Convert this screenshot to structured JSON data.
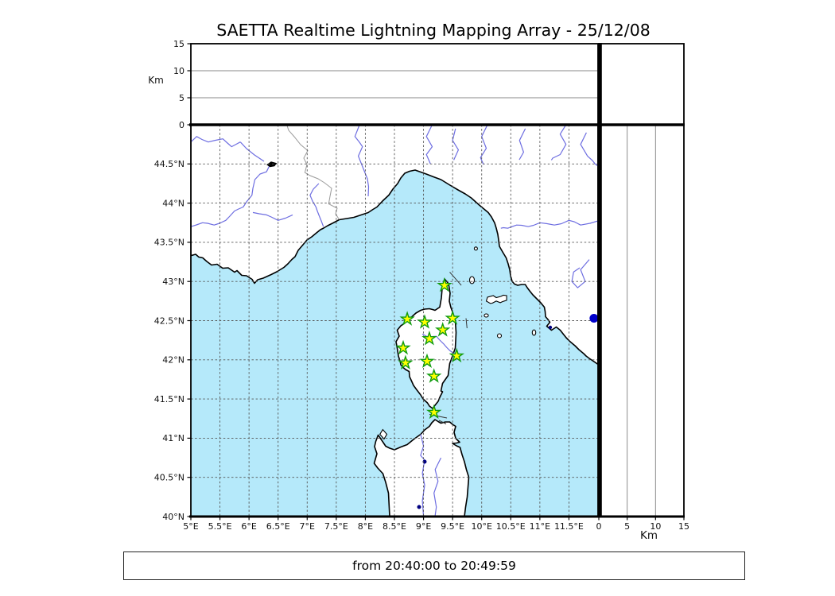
{
  "title": "SAETTA Realtime Lightning Mapping Array - 25/12/08",
  "time_bar": {
    "text": "from 20:40:00 to 20:49:59"
  },
  "colors": {
    "sea": "#b5e9fa",
    "land": "#ffffff",
    "coastline": "#000000",
    "river": "#6e6ee1",
    "country_border": "#9a9a9a",
    "map_grid": "#555555",
    "panel_grid": "#8a8a8a",
    "station_fill": "#ffff00",
    "station_stroke": "#0f9b0f",
    "source_dot": "#0000cc",
    "lake": "#000080"
  },
  "map_panel": {
    "lon_range": [
      5,
      12
    ],
    "lat_range": [
      40,
      45
    ],
    "grid_interval_deg": 0.5,
    "lon_ticks": [
      {
        "value": 5,
        "label": "5°E"
      },
      {
        "value": 5.5,
        "label": "5.5°E"
      },
      {
        "value": 6,
        "label": "6°E"
      },
      {
        "value": 6.5,
        "label": "6.5°E"
      },
      {
        "value": 7,
        "label": "7°E"
      },
      {
        "value": 7.5,
        "label": "7.5°E"
      },
      {
        "value": 8,
        "label": "8°E"
      },
      {
        "value": 8.5,
        "label": "8.5°E"
      },
      {
        "value": 9,
        "label": "9°E"
      },
      {
        "value": 9.5,
        "label": "9.5°E"
      },
      {
        "value": 10,
        "label": "10°E"
      },
      {
        "value": 10.5,
        "label": "10.5°E"
      },
      {
        "value": 11,
        "label": "11°E"
      },
      {
        "value": 11.5,
        "label": "11.5°E"
      }
    ],
    "lat_ticks": [
      {
        "value": 40,
        "label": "40°N"
      },
      {
        "value": 40.5,
        "label": "40.5°N"
      },
      {
        "value": 41,
        "label": "41°N"
      },
      {
        "value": 41.5,
        "label": "41.5°N"
      },
      {
        "value": 42,
        "label": "42°N"
      },
      {
        "value": 42.5,
        "label": "42.5°N"
      },
      {
        "value": 43,
        "label": "43°N"
      },
      {
        "value": 43.5,
        "label": "43.5°N"
      },
      {
        "value": 44,
        "label": "44°N"
      },
      {
        "value": 44.5,
        "label": "44.5°N"
      }
    ]
  },
  "altitude_axes": {
    "unit_label": "Km",
    "range_km": [
      0,
      15
    ],
    "ticks": [
      {
        "value": 0,
        "label": "0"
      },
      {
        "value": 5,
        "label": "5"
      },
      {
        "value": 10,
        "label": "10"
      },
      {
        "value": 15,
        "label": "15"
      }
    ],
    "gridline_values": [
      5,
      10
    ]
  },
  "stations": [
    {
      "lon": 9.36,
      "lat": 42.95
    },
    {
      "lon": 8.72,
      "lat": 42.52
    },
    {
      "lon": 9.02,
      "lat": 42.48
    },
    {
      "lon": 9.5,
      "lat": 42.53
    },
    {
      "lon": 9.33,
      "lat": 42.38
    },
    {
      "lon": 9.1,
      "lat": 42.27
    },
    {
      "lon": 8.65,
      "lat": 42.15
    },
    {
      "lon": 9.57,
      "lat": 42.05
    },
    {
      "lon": 8.69,
      "lat": 41.96
    },
    {
      "lon": 9.06,
      "lat": 41.98
    },
    {
      "lon": 9.18,
      "lat": 41.79
    },
    {
      "lon": 9.18,
      "lat": 41.33
    }
  ],
  "lightning_sources": [
    {
      "lon": 11.93,
      "lat": 42.53,
      "color": "#0000cc"
    }
  ]
}
